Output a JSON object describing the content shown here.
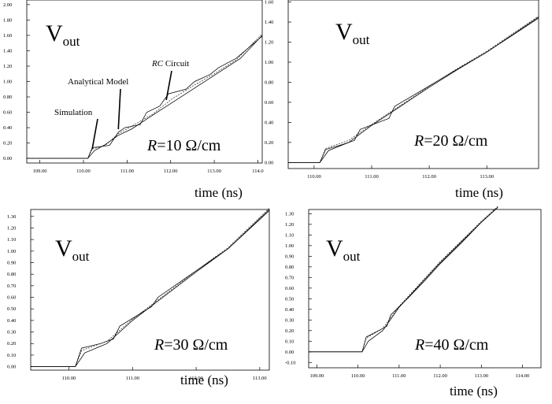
{
  "chart_data": [
    {
      "type": "line",
      "vout_label": "V",
      "vout_sub": "out",
      "r_var": "R",
      "r_text": "=10 Ω/cm",
      "xlabel": "time (ns)",
      "xlim": [
        108.7,
        114.1
      ],
      "ylim": [
        -0.06,
        2.06
      ],
      "xticks": [
        "109.00",
        "110.00",
        "111.00",
        "112.00",
        "113.00",
        "114.0"
      ],
      "xtick_values": [
        109,
        110,
        111,
        112,
        113,
        114
      ],
      "yticks": [
        "0.00",
        "0.20",
        "0.40",
        "0.60",
        "0.80",
        "1.00",
        "1.20",
        "1.40",
        "1.60",
        "1.80",
        "2.00"
      ],
      "ytick_values": [
        0,
        0.2,
        0.4,
        0.6,
        0.8,
        1.0,
        1.2,
        1.4,
        1.6,
        1.8,
        2.0
      ],
      "series": [
        {
          "style": "solid",
          "x": [
            108.7,
            110.1,
            110.2,
            110.35,
            110.6,
            110.8,
            110.95,
            111.3,
            111.45,
            111.75,
            111.95,
            112.35,
            112.55,
            112.9,
            113.1,
            113.5,
            114.1
          ],
          "y": [
            0.0,
            0.0,
            0.14,
            0.15,
            0.17,
            0.34,
            0.4,
            0.44,
            0.6,
            0.68,
            0.84,
            0.9,
            1.0,
            1.09,
            1.18,
            1.3,
            1.59
          ]
        },
        {
          "style": "solid",
          "x": [
            108.7,
            110.1,
            110.25,
            110.5,
            110.8,
            111.1,
            111.5,
            111.8,
            112.1,
            112.4,
            112.7,
            113.0,
            113.3,
            113.6,
            114.1
          ],
          "y": [
            0.0,
            0.0,
            0.1,
            0.18,
            0.3,
            0.38,
            0.53,
            0.64,
            0.75,
            0.86,
            0.97,
            1.08,
            1.19,
            1.3,
            1.6
          ]
        },
        {
          "style": "dashed",
          "x": [
            108.7,
            110.1,
            110.2,
            110.5,
            110.8,
            111.2,
            111.6,
            112.0,
            112.5,
            113.0,
            113.5,
            114.1
          ],
          "y": [
            0.0,
            0.0,
            0.12,
            0.17,
            0.32,
            0.45,
            0.58,
            0.76,
            0.94,
            1.1,
            1.28,
            1.62
          ]
        }
      ],
      "annotations": [
        {
          "label": "Simulation",
          "x": 110.2,
          "y": 0.12
        },
        {
          "label": "Analytical Model",
          "x": 110.8,
          "y": 0.38
        },
        {
          "label_var": "RC",
          "label": " Circuit",
          "x": 111.9,
          "y": 0.76
        }
      ]
    },
    {
      "type": "line",
      "vout_label": "V",
      "vout_sub": "out",
      "r_var": "R",
      "r_text": "=20 Ω/cm",
      "xlabel": "time (ns)",
      "xlim": [
        109.55,
        113.9
      ],
      "ylim": [
        -0.06,
        1.62
      ],
      "xticks": [
        "110.00",
        "111.00",
        "112.00",
        "113.00"
      ],
      "xtick_values": [
        110,
        111,
        112,
        113
      ],
      "yticks": [
        "0.00",
        "0.20",
        "0.40",
        "0.60",
        "0.80",
        "1.00",
        "1.20",
        "1.40",
        "1.60"
      ],
      "ytick_values": [
        0,
        0.2,
        0.4,
        0.6,
        0.8,
        1.0,
        1.2,
        1.4,
        1.6
      ],
      "series": [
        {
          "style": "solid",
          "x": [
            109.55,
            110.1,
            110.2,
            110.5,
            110.7,
            110.8,
            111.3,
            111.4,
            111.9,
            112.4,
            113.0,
            113.9
          ],
          "y": [
            0.0,
            0.0,
            0.13,
            0.18,
            0.22,
            0.33,
            0.44,
            0.56,
            0.73,
            0.9,
            1.1,
            1.45
          ]
        },
        {
          "style": "solid",
          "x": [
            109.55,
            110.1,
            110.25,
            110.6,
            111.0,
            111.5,
            112.0,
            112.5,
            113.0,
            113.9
          ],
          "y": [
            0.0,
            0.0,
            0.12,
            0.2,
            0.37,
            0.56,
            0.75,
            0.93,
            1.1,
            1.44
          ]
        },
        {
          "style": "dashed",
          "x": [
            109.55,
            110.1,
            110.2,
            110.6,
            111.0,
            111.5,
            112.0,
            112.5,
            113.0,
            113.9
          ],
          "y": [
            0.0,
            0.0,
            0.14,
            0.22,
            0.38,
            0.57,
            0.76,
            0.94,
            1.11,
            1.46
          ]
        }
      ]
    },
    {
      "type": "line",
      "vout_label": "V",
      "vout_sub": "out",
      "r_var": "R",
      "r_text": "=30 Ω/cm",
      "xlabel": "time (ns)",
      "xlim": [
        109.4,
        113.15
      ],
      "ylim": [
        -0.03,
        1.36
      ],
      "xticks": [
        "110.00",
        "111.00",
        "112.00",
        "113.00"
      ],
      "xtick_values": [
        110,
        111,
        112,
        113
      ],
      "yticks": [
        "0.00",
        "0.10",
        "0.20",
        "0.30",
        "0.40",
        "0.50",
        "0.60",
        "0.70",
        "0.80",
        "0.90",
        "1.00",
        "1.10",
        "1.20",
        "1.30"
      ],
      "ytick_values": [
        0,
        0.1,
        0.2,
        0.3,
        0.4,
        0.5,
        0.6,
        0.7,
        0.8,
        0.9,
        1.0,
        1.1,
        1.2,
        1.3
      ],
      "series": [
        {
          "style": "solid",
          "x": [
            109.4,
            110.1,
            110.2,
            110.5,
            110.7,
            110.8,
            111.3,
            111.4,
            112.0,
            112.5,
            113.15
          ],
          "y": [
            0.0,
            0.0,
            0.16,
            0.2,
            0.24,
            0.35,
            0.52,
            0.6,
            0.83,
            1.02,
            1.36
          ]
        },
        {
          "style": "solid",
          "x": [
            109.4,
            110.1,
            110.25,
            110.6,
            111.0,
            111.5,
            112.0,
            112.5,
            113.15
          ],
          "y": [
            0.0,
            0.0,
            0.12,
            0.2,
            0.4,
            0.61,
            0.82,
            1.02,
            1.35
          ]
        },
        {
          "style": "dashed",
          "x": [
            109.4,
            110.1,
            110.2,
            110.6,
            111.0,
            111.5,
            112.0,
            112.5,
            113.15
          ],
          "y": [
            0.0,
            0.0,
            0.14,
            0.22,
            0.41,
            0.62,
            0.83,
            1.03,
            1.37
          ]
        }
      ]
    },
    {
      "type": "line",
      "vout_label": "V",
      "vout_sub": "out",
      "r_var": "R",
      "r_text": "=40 Ω/cm",
      "xlabel": "time (ns)",
      "xlim": [
        108.8,
        114.45
      ],
      "ylim": [
        -0.15,
        1.34
      ],
      "xticks": [
        "109.00",
        "110.00",
        "111.00",
        "112.00",
        "113.00",
        "114.00"
      ],
      "xtick_values": [
        109,
        110,
        111,
        112,
        113,
        114
      ],
      "yticks": [
        "-0.10",
        "0.00",
        "0.10",
        "0.20",
        "0.30",
        "0.40",
        "0.50",
        "0.60",
        "0.70",
        "0.80",
        "0.90",
        "1.00",
        "1.10",
        "1.20",
        "1.30"
      ],
      "ytick_values": [
        -0.1,
        0,
        0.1,
        0.2,
        0.3,
        0.4,
        0.5,
        0.6,
        0.7,
        0.8,
        0.9,
        1.0,
        1.1,
        1.2,
        1.3
      ],
      "series": [
        {
          "style": "solid",
          "x": [
            108.8,
            110.1,
            110.2,
            110.5,
            110.7,
            110.8,
            111.2,
            111.6,
            112.0,
            112.5,
            113.0,
            113.4
          ],
          "y": [
            0.0,
            0.0,
            0.14,
            0.2,
            0.24,
            0.35,
            0.5,
            0.66,
            0.83,
            1.02,
            1.22,
            1.36
          ]
        },
        {
          "style": "solid",
          "x": [
            108.8,
            110.1,
            110.25,
            110.6,
            111.0,
            111.5,
            112.0,
            112.5,
            113.0,
            113.4
          ],
          "y": [
            0.0,
            0.0,
            0.1,
            0.2,
            0.42,
            0.63,
            0.84,
            1.03,
            1.22,
            1.36
          ]
        },
        {
          "style": "dashed",
          "x": [
            108.8,
            110.1,
            110.2,
            110.6,
            111.0,
            111.5,
            112.0,
            112.5,
            113.0,
            113.4
          ],
          "y": [
            0.0,
            0.0,
            0.13,
            0.22,
            0.43,
            0.64,
            0.85,
            1.04,
            1.23,
            1.37
          ]
        }
      ]
    }
  ]
}
